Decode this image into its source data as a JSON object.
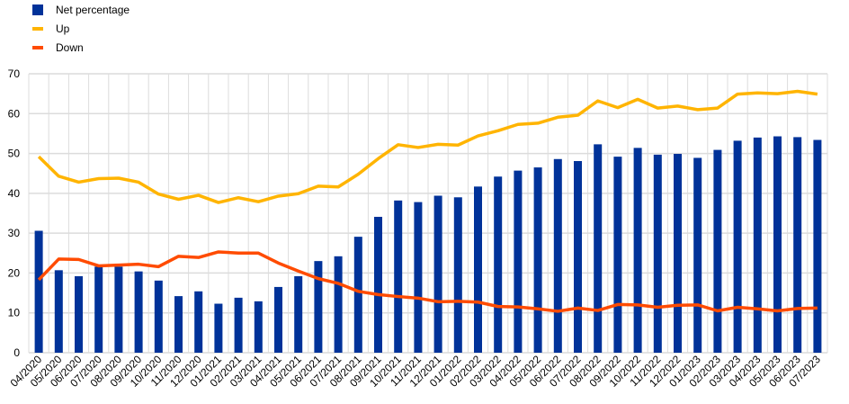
{
  "chart_data": {
    "type": "bar",
    "title": "",
    "xlabel": "",
    "ylabel": "",
    "ylim": [
      0,
      70
    ],
    "yticks": [
      0,
      10,
      20,
      30,
      40,
      50,
      60,
      70
    ],
    "grid": true,
    "legend_position": "top-left",
    "categories": [
      "04/2020",
      "05/2020",
      "06/2020",
      "07/2020",
      "08/2020",
      "09/2020",
      "10/2020",
      "11/2020",
      "12/2020",
      "01/2021",
      "02/2021",
      "03/2021",
      "04/2021",
      "05/2021",
      "06/2021",
      "07/2021",
      "08/2021",
      "09/2021",
      "10/2021",
      "11/2021",
      "12/2021",
      "01/2022",
      "02/2022",
      "03/2022",
      "04/2022",
      "05/2022",
      "06/2022",
      "07/2022",
      "08/2022",
      "09/2022",
      "10/2022",
      "11/2022",
      "12/2022",
      "01/2023",
      "02/2023",
      "03/2023",
      "04/2023",
      "05/2023",
      "06/2023",
      "07/2023"
    ],
    "series": [
      {
        "name": "Net percentage",
        "kind": "bar",
        "color": "#003299",
        "values": [
          30.6,
          20.7,
          19.2,
          21.6,
          21.6,
          20.4,
          18.1,
          14.2,
          15.4,
          12.3,
          13.8,
          12.9,
          16.5,
          19.2,
          23.0,
          24.2,
          29.1,
          34.1,
          38.2,
          37.8,
          39.4,
          39.0,
          41.7,
          44.2,
          45.7,
          46.5,
          48.6,
          48.1,
          52.3,
          49.2,
          51.4,
          49.7,
          49.9,
          48.9,
          50.9,
          53.2,
          54.0,
          54.3,
          54.1,
          53.4
        ]
      },
      {
        "name": "Up",
        "kind": "line",
        "color": "#FFB400",
        "values": [
          49.2,
          44.3,
          42.8,
          43.7,
          43.8,
          42.8,
          39.8,
          38.5,
          39.5,
          37.7,
          38.9,
          37.9,
          39.3,
          39.9,
          41.8,
          41.6,
          44.8,
          48.7,
          52.2,
          51.5,
          52.3,
          52.1,
          54.4,
          55.7,
          57.3,
          57.6,
          59.1,
          59.6,
          63.2,
          61.5,
          63.6,
          61.4,
          61.9,
          61.0,
          61.4,
          64.9,
          65.2,
          65.0,
          65.6,
          64.9
        ]
      },
      {
        "name": "Down",
        "kind": "line",
        "color": "#FF4B00",
        "values": [
          18.3,
          23.5,
          23.4,
          21.8,
          22.0,
          22.2,
          21.6,
          24.2,
          23.9,
          25.3,
          25.0,
          25.0,
          22.5,
          20.5,
          18.6,
          17.4,
          15.4,
          14.6,
          14.1,
          13.7,
          12.8,
          12.9,
          12.7,
          11.6,
          11.5,
          11.0,
          10.4,
          11.2,
          10.6,
          12.1,
          12.0,
          11.4,
          11.9,
          12.0,
          10.5,
          11.4,
          11.0,
          10.5,
          11.1,
          11.2
        ]
      }
    ]
  }
}
